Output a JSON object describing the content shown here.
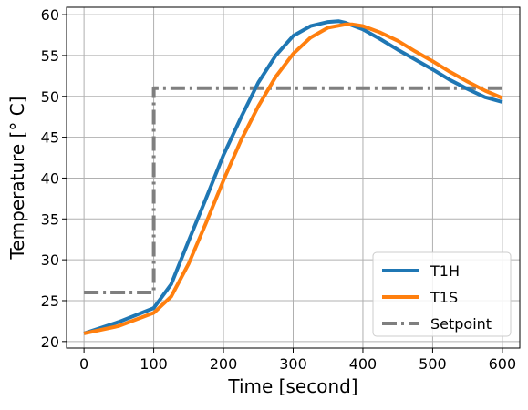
{
  "chart_data": {
    "type": "line",
    "title": "",
    "xlabel": "Time [second]",
    "ylabel": "Temperature [° C]",
    "xlim": [
      -25,
      625
    ],
    "ylim": [
      19.2,
      60.9
    ],
    "x_ticks": [
      0,
      100,
      200,
      300,
      400,
      500,
      600
    ],
    "y_ticks": [
      20,
      25,
      30,
      35,
      40,
      45,
      50,
      55,
      60
    ],
    "grid": true,
    "legend_position": "lower-right",
    "series": [
      {
        "name": "T1H",
        "color": "#1f77b4",
        "style": "solid",
        "x": [
          0,
          50,
          100,
          125,
          150,
          175,
          200,
          225,
          250,
          275,
          300,
          325,
          350,
          365,
          375,
          400,
          425,
          450,
          475,
          500,
          525,
          550,
          575,
          600
        ],
        "y": [
          21.0,
          22.4,
          24.1,
          27.0,
          32.3,
          37.5,
          42.8,
          47.4,
          51.7,
          55.0,
          57.4,
          58.6,
          59.1,
          59.2,
          59.0,
          58.2,
          57.0,
          55.7,
          54.5,
          53.3,
          52.0,
          50.9,
          49.9,
          49.3
        ]
      },
      {
        "name": "T1S",
        "color": "#ff7f0e",
        "style": "solid",
        "x": [
          0,
          50,
          100,
          125,
          150,
          175,
          200,
          225,
          250,
          275,
          300,
          325,
          350,
          375,
          385,
          400,
          425,
          450,
          475,
          500,
          525,
          550,
          575,
          600
        ],
        "y": [
          21.0,
          21.9,
          23.5,
          25.5,
          29.5,
          34.5,
          39.7,
          44.6,
          48.8,
          52.4,
          55.2,
          57.2,
          58.4,
          58.8,
          58.8,
          58.6,
          57.8,
          56.8,
          55.5,
          54.3,
          53.0,
          51.8,
          50.7,
          49.8
        ]
      },
      {
        "name": "Setpoint",
        "color": "#7f7f7f",
        "style": "dashdot",
        "x": [
          0,
          100,
          100,
          600
        ],
        "y": [
          26,
          26,
          51,
          51
        ]
      }
    ]
  }
}
